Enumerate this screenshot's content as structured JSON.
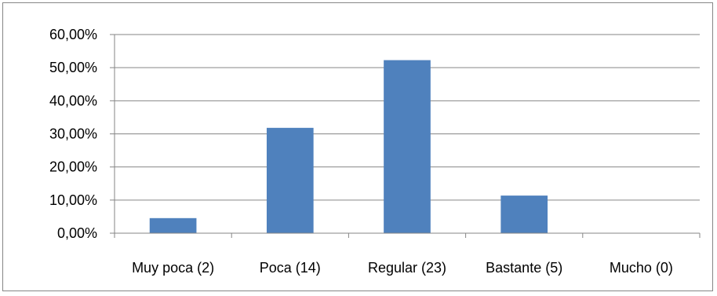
{
  "chart_data": {
    "type": "bar",
    "categories": [
      "Muy poca (2)",
      "Poca (14)",
      "Regular (23)",
      "Bastante (5)",
      "Mucho (0)"
    ],
    "values": [
      4.55,
      31.82,
      52.27,
      11.36,
      0.0
    ],
    "y_ticks": [
      "0,00%",
      "10,00%",
      "20,00%",
      "30,00%",
      "40,00%",
      "50,00%",
      "60,00%"
    ],
    "ylim": [
      0,
      60
    ],
    "y_unit": "percent",
    "grid": true,
    "legend": "none",
    "bar_color": "#4F81BD",
    "gridline_color": "#868686",
    "axis_color": "#868686"
  }
}
